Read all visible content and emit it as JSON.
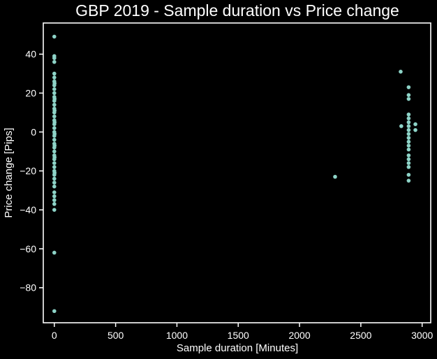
{
  "chart_data": {
    "type": "scatter",
    "title": "GBP 2019 - Sample duration vs Price change",
    "xlabel": "Sample duration [Minutes]",
    "ylabel": "Price change [Pips]",
    "xlim": [
      -90,
      3070
    ],
    "ylim": [
      -98,
      56
    ],
    "xticks": [
      0,
      500,
      1000,
      1500,
      2000,
      2500,
      3000
    ],
    "yticks": [
      -80,
      -60,
      -40,
      -20,
      0,
      20,
      40
    ],
    "grid": false,
    "colors": {
      "background": "#000000",
      "axes": "#ffffff",
      "marker": "#8dd3c7"
    },
    "series": [
      {
        "values": [
          [
            0,
            49
          ],
          [
            0,
            39
          ],
          [
            0,
            38
          ],
          [
            0,
            36
          ],
          [
            0,
            30
          ],
          [
            0,
            28
          ],
          [
            0,
            26
          ],
          [
            0,
            24
          ],
          [
            0,
            22
          ],
          [
            0,
            20
          ],
          [
            0,
            18
          ],
          [
            0,
            16
          ],
          [
            0,
            14
          ],
          [
            0,
            12
          ],
          [
            0,
            10
          ],
          [
            0,
            8
          ],
          [
            0,
            6
          ],
          [
            0,
            4
          ],
          [
            0,
            2
          ],
          [
            0,
            0
          ],
          [
            0,
            -2
          ],
          [
            0,
            -4
          ],
          [
            0,
            -6
          ],
          [
            0,
            -8
          ],
          [
            0,
            -10
          ],
          [
            0,
            -12
          ],
          [
            0,
            -14
          ],
          [
            0,
            -16
          ],
          [
            0,
            -18
          ],
          [
            0,
            -20
          ],
          [
            0,
            -22
          ],
          [
            0,
            -24
          ],
          [
            0,
            -26
          ],
          [
            0,
            -28
          ],
          [
            0,
            -31
          ],
          [
            0,
            -33
          ],
          [
            0,
            -35
          ],
          [
            0,
            -37
          ],
          [
            0,
            -40
          ],
          [
            0,
            -62
          ],
          [
            0,
            -92
          ],
          [
            2,
            25
          ],
          [
            2,
            17
          ],
          [
            2,
            11
          ],
          [
            2,
            5
          ],
          [
            2,
            -1
          ],
          [
            2,
            -7
          ],
          [
            2,
            -13
          ],
          [
            2,
            -21
          ],
          [
            2290,
            -23
          ],
          [
            2825,
            31
          ],
          [
            2830,
            3
          ],
          [
            2890,
            23
          ],
          [
            2890,
            19
          ],
          [
            2890,
            17
          ],
          [
            2890,
            9
          ],
          [
            2890,
            7
          ],
          [
            2890,
            5
          ],
          [
            2890,
            3
          ],
          [
            2890,
            1
          ],
          [
            2890,
            -1
          ],
          [
            2890,
            -3
          ],
          [
            2890,
            -5
          ],
          [
            2890,
            -7
          ],
          [
            2890,
            -9
          ],
          [
            2890,
            -12
          ],
          [
            2890,
            -14
          ],
          [
            2890,
            -16
          ],
          [
            2890,
            -18
          ],
          [
            2890,
            -22
          ],
          [
            2890,
            -25
          ],
          [
            2945,
            4
          ],
          [
            2945,
            1
          ]
        ]
      }
    ]
  }
}
